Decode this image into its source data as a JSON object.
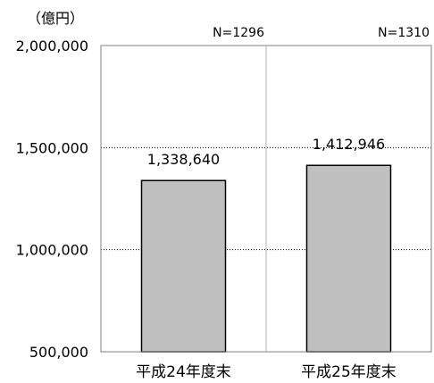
{
  "chart_data": {
    "type": "bar",
    "title": "",
    "unit": "（億円）",
    "categories": [
      "平成24年度末",
      "平成25年度末"
    ],
    "values": [
      1338640,
      1412946
    ],
    "data_labels": [
      "1,338,640",
      "1,412,946"
    ],
    "sample_sizes": [
      "N=1296",
      "N=1310"
    ],
    "ylim": [
      500000,
      2000000
    ],
    "yticks": [
      500000,
      1000000,
      1500000,
      2000000
    ],
    "ytick_labels": [
      "500,000",
      "1,000,000",
      "1,500,000",
      "2,000,000"
    ],
    "xlabel": "",
    "ylabel": "",
    "grid": "horizontal dotted",
    "colors": {
      "bar_fill": "#c0c0c0",
      "bar_stroke": "#000000",
      "axis": "#808080",
      "grid": "#000000"
    }
  }
}
